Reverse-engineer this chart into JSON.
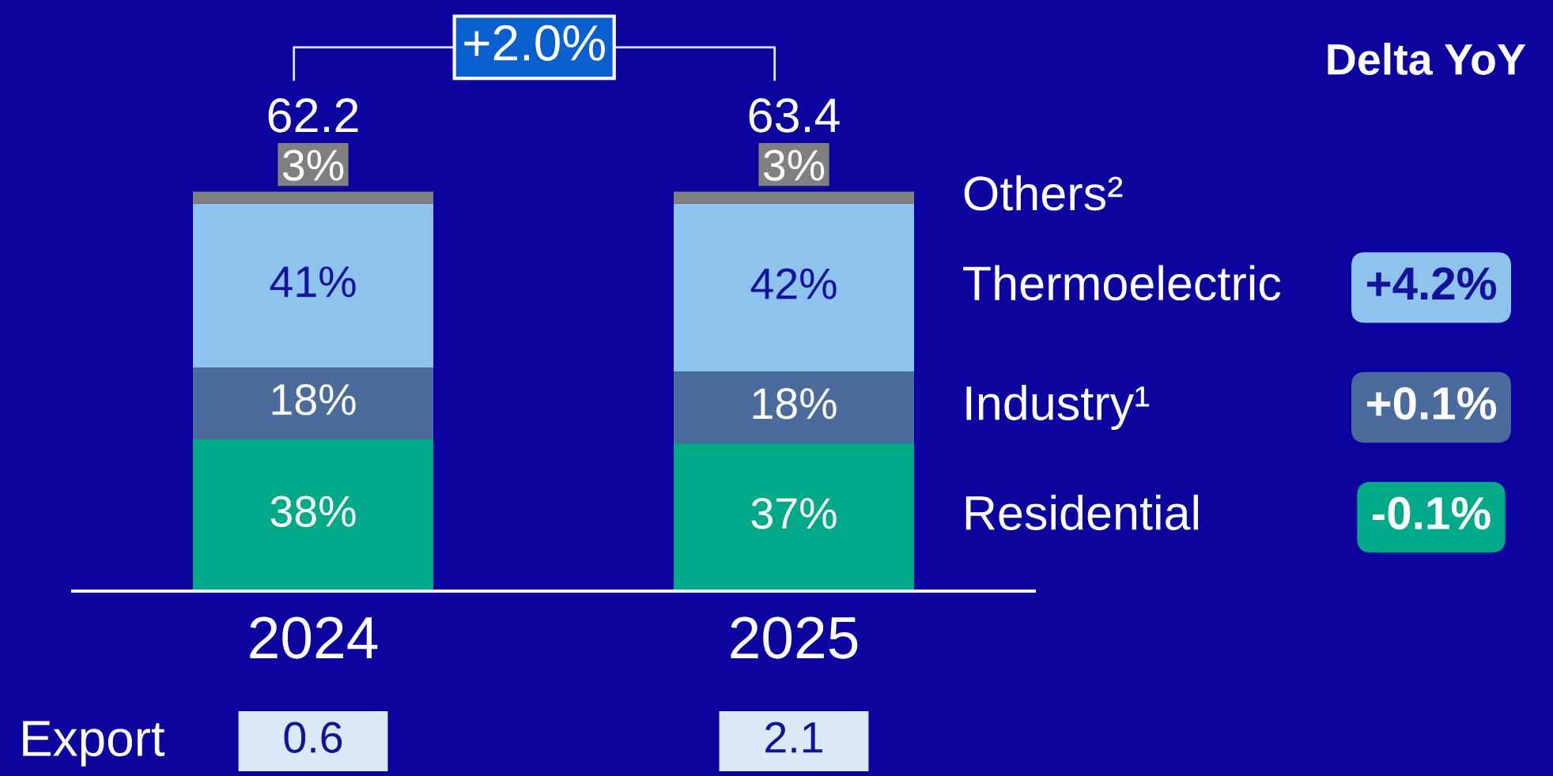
{
  "chart_data": {
    "type": "bar",
    "stacked": true,
    "legend": "right",
    "categories": [
      "2024",
      "2025"
    ],
    "series": [
      {
        "name": "Residential",
        "color": "#00aa88",
        "values": [
          38,
          37
        ],
        "value_labels": [
          "38%",
          "37%"
        ]
      },
      {
        "name": "Industry¹",
        "color": "#4a6b9b",
        "values": [
          18,
          18
        ],
        "value_labels": [
          "18%",
          "18%"
        ]
      },
      {
        "name": "Thermoelectric",
        "color": "#8ec3ee",
        "values": [
          41,
          42
        ],
        "value_labels": [
          "41%",
          "42%"
        ]
      },
      {
        "name": "Others²",
        "color": "#808080",
        "values": [
          3,
          3
        ],
        "value_labels": [
          "3%",
          "3%"
        ]
      }
    ],
    "annotations": [
      "62.2",
      "63.4",
      "+2.0%",
      "Delta YoY",
      "+4.2%",
      "+0.1%",
      "-0.1%",
      "Export",
      "0.6",
      "2.1"
    ]
  }
}
